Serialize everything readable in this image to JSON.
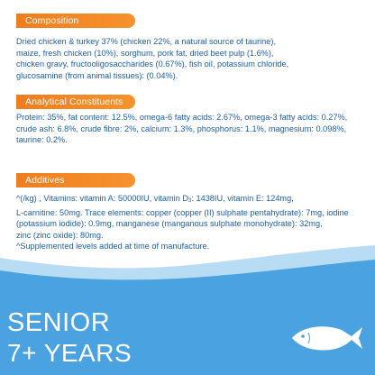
{
  "composition": {
    "heading": "Composition",
    "lines": [
      "Dried chicken & turkey 37% (chicken 22%, a natural source of taurine),",
      "maize, fresh chicken (10%), sorghum, pork fat, dried beet pulp (1.6%),",
      "chicken gravy, fructooligosaccharides (0.67%), fish oil, potassium chloride,",
      "glucosamine (from animal tissues): (0.04%)."
    ]
  },
  "analytical": {
    "heading": "Analytical Constituents",
    "lines": [
      "Protein: 35%, fat content: 12.5%, omega-6 fatty acids: 2.67%, omega-3 fatty acids: 0.27%,",
      "crude ash: 6.8%, crude fibre: 2%, calcium: 1.3%, phosphorus: 1.1%, magnesium: 0.098%,",
      "taurine: 0.2%."
    ]
  },
  "additives": {
    "heading": "Additives",
    "line1": "^(/kg) , Vitamins: vitamin A: 50000IU, vitamin D",
    "line1_sub": "3",
    "line1_rest": ": 1438IU, vitamin E: 124mg,",
    "lines": [
      "L-carnitine: 50mg. Trace elements: copper (copper (II) sulphate pentahydrate): 7mg, iodine",
      "(potassium iodide): 0.9mg, manganese (manganous sulphate monohydrate): 32mg,",
      "zinc (zinc oxide): 80mg.",
      "^Supplemented levels added at time of manufacture."
    ]
  },
  "banner": {
    "title": "SENIOR",
    "subtitle": "7+ YEARS",
    "icon": "fish-icon",
    "colors": {
      "wave_light": "#b8dcf4",
      "wave_main": "#4aa3e0",
      "accent": "#f07d1f",
      "text_blue": "#1d5fa8"
    }
  }
}
